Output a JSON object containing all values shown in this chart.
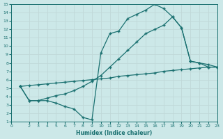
{
  "background_color": "#cce8e8",
  "grid_color": "#b8d8d8",
  "line_color": "#1a7070",
  "xlabel": "Humidex (Indice chaleur)",
  "xlim": [
    0,
    23
  ],
  "ylim": [
    1,
    15
  ],
  "xticks": [
    0,
    2,
    3,
    4,
    5,
    6,
    7,
    8,
    9,
    10,
    11,
    12,
    13,
    14,
    15,
    16,
    17,
    18,
    19,
    20,
    21,
    22,
    23
  ],
  "yticks": [
    1,
    2,
    3,
    4,
    5,
    6,
    7,
    8,
    9,
    10,
    11,
    12,
    13,
    14,
    15
  ],
  "line1_x": [
    1,
    2,
    3,
    4,
    5,
    6,
    7,
    8,
    9,
    10,
    11,
    12,
    13,
    14,
    15,
    16,
    17,
    18,
    19,
    20,
    21,
    22,
    23
  ],
  "line1_y": [
    5.2,
    5.3,
    5.4,
    5.5,
    5.6,
    5.7,
    5.8,
    5.9,
    6.0,
    6.1,
    6.2,
    6.4,
    6.5,
    6.6,
    6.7,
    6.8,
    7.0,
    7.1,
    7.2,
    7.3,
    7.4,
    7.5,
    7.5
  ],
  "line2_x": [
    1,
    2,
    3,
    4,
    5,
    6,
    7,
    8,
    9,
    10,
    11,
    12,
    13,
    14,
    15,
    16,
    17,
    18,
    19,
    20,
    21,
    22,
    23
  ],
  "line2_y": [
    5.2,
    3.5,
    3.5,
    3.8,
    4.1,
    4.3,
    4.7,
    5.2,
    5.8,
    6.5,
    7.5,
    8.5,
    9.5,
    10.5,
    11.5,
    12.0,
    12.5,
    13.5,
    12.2,
    8.2,
    8.0,
    7.8,
    7.5
  ],
  "line3_x": [
    1,
    2,
    3,
    4,
    5,
    6,
    7,
    8,
    9,
    10,
    11,
    12,
    13,
    14,
    15,
    16,
    17,
    18,
    19,
    20,
    21,
    22,
    23
  ],
  "line3_y": [
    5.2,
    3.5,
    3.5,
    3.5,
    3.2,
    2.8,
    2.5,
    1.5,
    1.2,
    9.2,
    11.5,
    11.8,
    13.3,
    13.8,
    14.3,
    15.0,
    14.5,
    13.5,
    12.2,
    8.2,
    8.0,
    7.5,
    7.5
  ]
}
